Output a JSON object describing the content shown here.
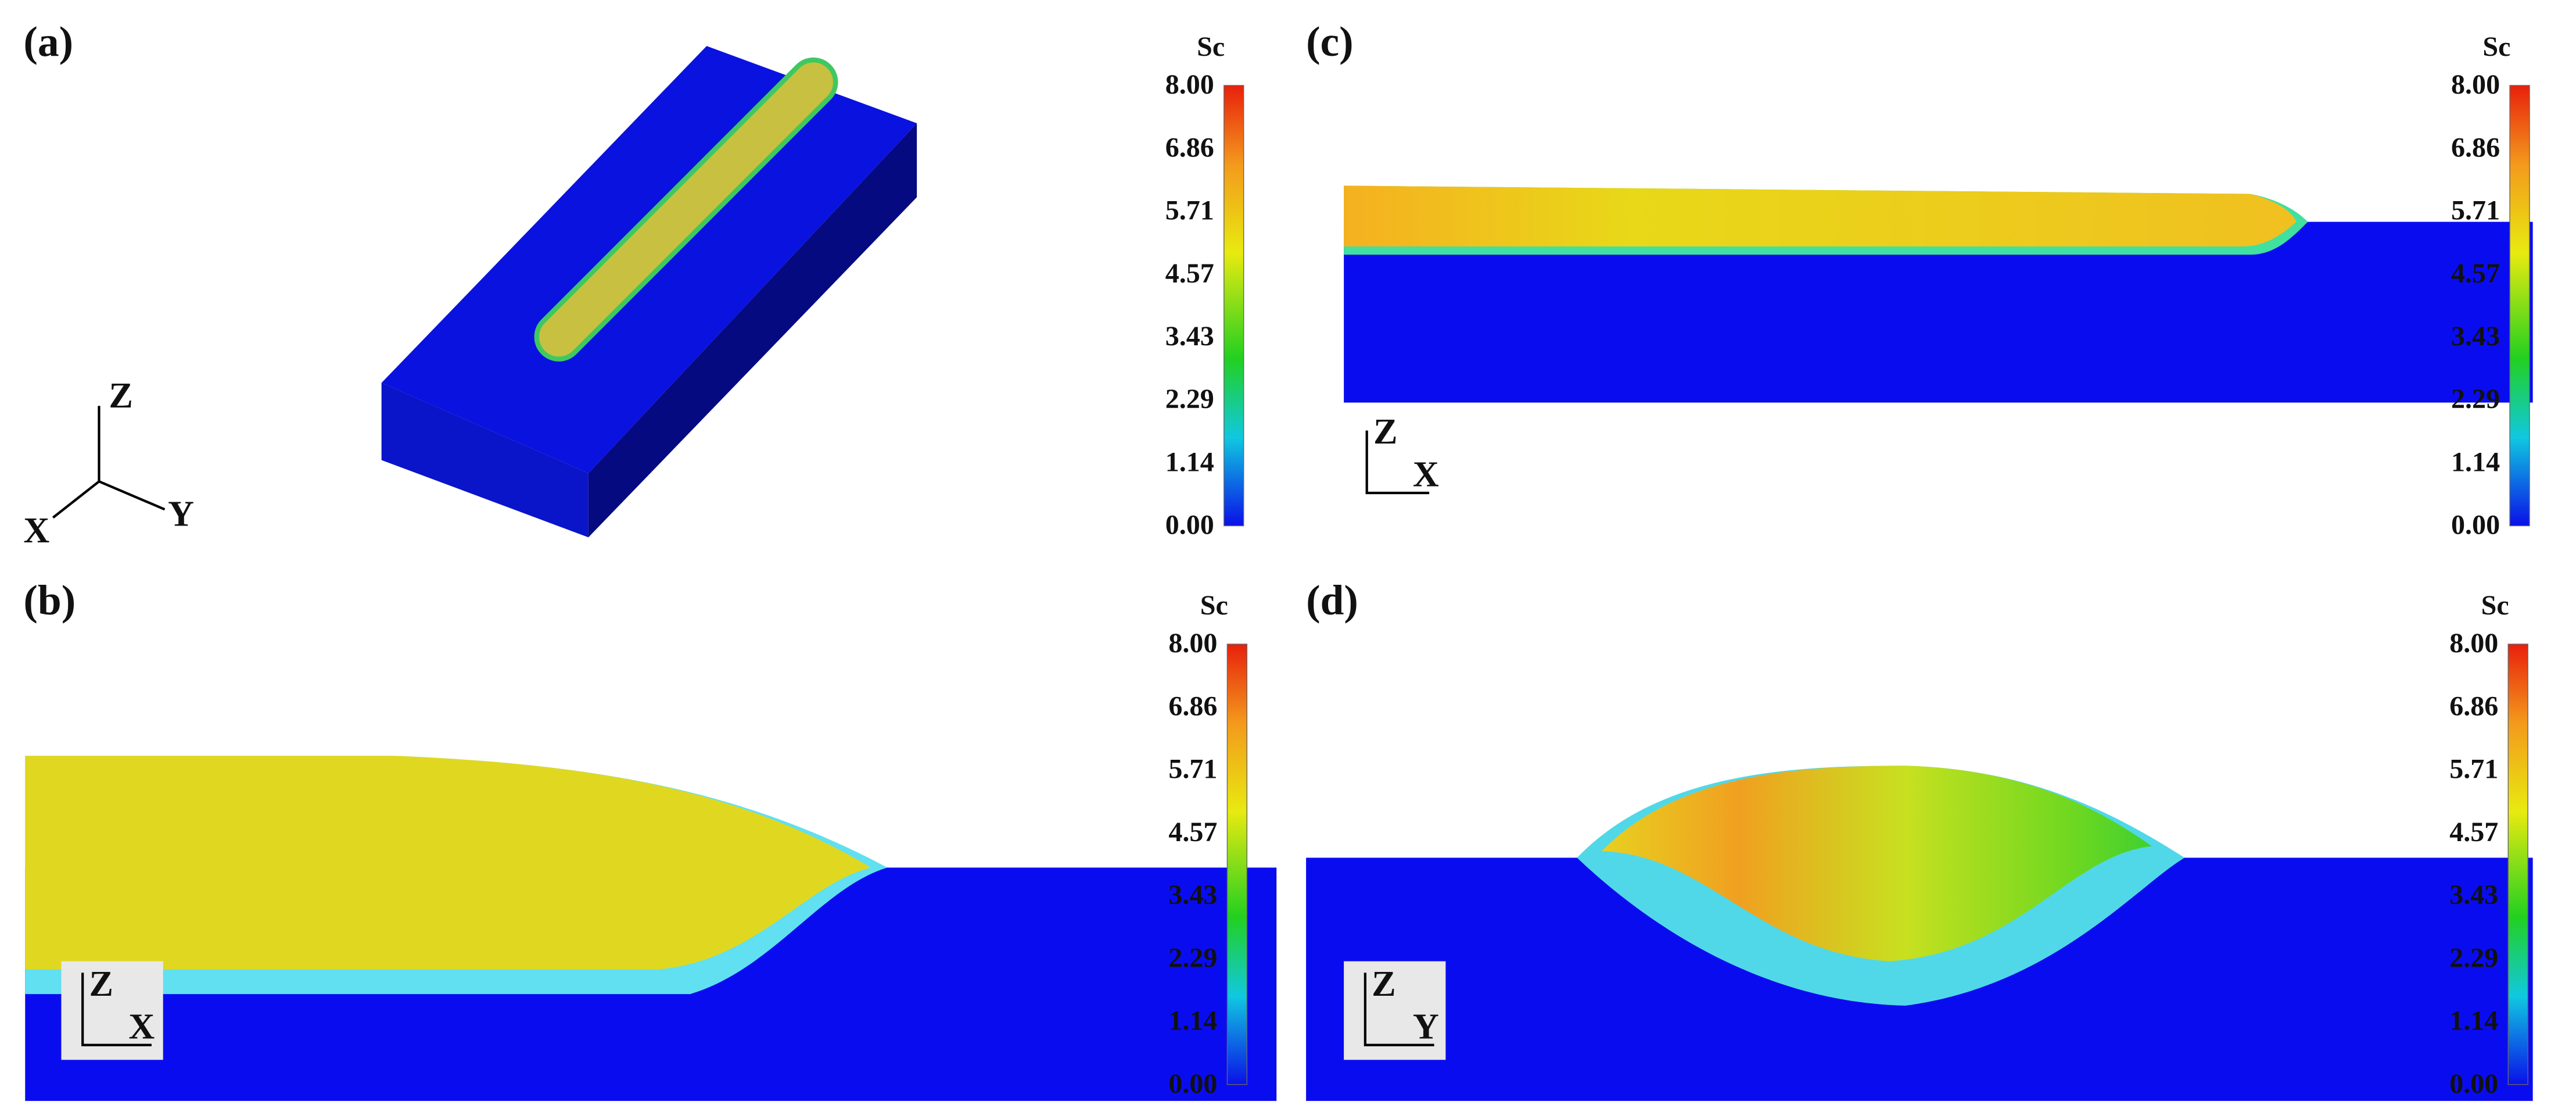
{
  "panels": [
    {
      "label": "(a)",
      "colorbar": {
        "title": "Sc",
        "ticks": [
          "8.00",
          "6.86",
          "5.71",
          "4.57",
          "3.43",
          "2.29",
          "1.14",
          "0.00"
        ]
      },
      "axes": [
        "Z",
        "Y",
        "X"
      ]
    },
    {
      "label": "(b)",
      "colorbar": {
        "title": "Sc",
        "ticks": [
          "8.00",
          "6.86",
          "5.71",
          "4.57",
          "3.43",
          "2.29",
          "1.14",
          "0.00"
        ]
      },
      "axes": [
        "Z",
        "X"
      ]
    },
    {
      "label": "(c)",
      "colorbar": {
        "title": "Sc",
        "ticks": [
          "8.00",
          "6.86",
          "5.71",
          "4.57",
          "3.43",
          "2.29",
          "1.14",
          "0.00"
        ]
      },
      "axes": [
        "Z",
        "X"
      ]
    },
    {
      "label": "(d)",
      "colorbar": {
        "title": "Sc",
        "ticks": [
          "8.00",
          "6.86",
          "5.71",
          "4.57",
          "3.43",
          "2.29",
          "1.14",
          "0.00"
        ]
      },
      "axes": [
        "Z",
        "Y"
      ]
    }
  ]
}
